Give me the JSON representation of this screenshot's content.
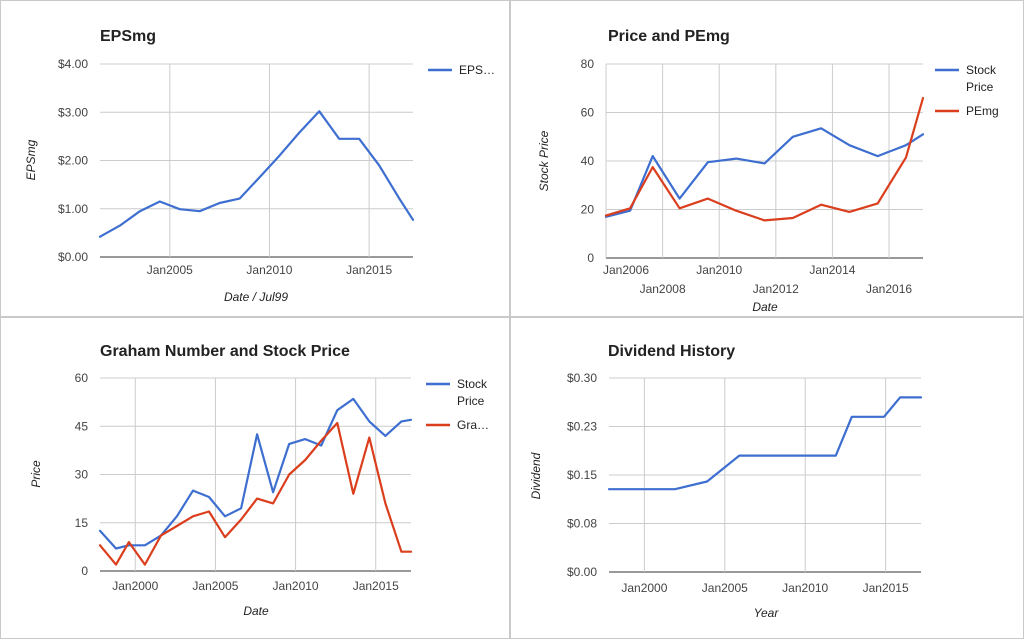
{
  "colors": {
    "blue": "#3e6fd0",
    "red": "#db3e1d",
    "grid": "#cccccc",
    "baseline": "#333333",
    "text": "#222222",
    "axis_text": "#444444"
  },
  "chart_data": [
    {
      "type": "line",
      "title": "EPSmg",
      "xlabel": "Date / Jul99",
      "ylabel": "EPSmg",
      "x_ticks": [
        "Jan2005",
        "Jan2010",
        "Jan2015"
      ],
      "y_ticks": [
        "$0.00",
        "$1.00",
        "$2.00",
        "$3.00",
        "$4.00"
      ],
      "ylim": [
        0,
        4
      ],
      "xlim": [
        2001.5,
        2017.2
      ],
      "grid": true,
      "legend_position": "right",
      "series": [
        {
          "name": "EPS…",
          "color": "#3e6fd0",
          "x": [
            2001.5,
            2002.5,
            2003.5,
            2004.5,
            2005.5,
            2006.5,
            2007.5,
            2008.5,
            2009.5,
            2010.5,
            2011.5,
            2012.5,
            2013.5,
            2014.5,
            2015.5,
            2016.5,
            2017.2
          ],
          "y": [
            0.42,
            0.65,
            0.95,
            1.15,
            0.99,
            0.95,
            1.12,
            1.21,
            1.65,
            2.1,
            2.58,
            3.02,
            2.45,
            2.45,
            1.9,
            1.22,
            0.77
          ]
        }
      ]
    },
    {
      "type": "line",
      "title": "Price and PEmg",
      "xlabel": "Date",
      "ylabel": "Stock Price",
      "x_ticks_upper": [
        "Jan2006",
        "Jan2010",
        "Jan2014"
      ],
      "x_ticks_lower": [
        "Jan2008",
        "Jan2012",
        "Jan2016"
      ],
      "y_ticks": [
        "0",
        "20",
        "40",
        "60",
        "80"
      ],
      "ylim": [
        0,
        80
      ],
      "xlim": [
        2006,
        2017.2
      ],
      "grid": true,
      "legend_position": "right",
      "series": [
        {
          "name": "Stock Price",
          "color": "#3e6fd0",
          "x": [
            2006,
            2006.85,
            2007.65,
            2008.6,
            2009.6,
            2010.6,
            2011.6,
            2012.6,
            2013.6,
            2014.6,
            2015.6,
            2016.6,
            2017.2
          ],
          "y": [
            17,
            19.5,
            42,
            24.5,
            39.5,
            41,
            39,
            50,
            53.5,
            46.5,
            42,
            46.5,
            51
          ]
        },
        {
          "name": "PEmg",
          "color": "#db3e1d",
          "x": [
            2006,
            2006.85,
            2007.65,
            2008.6,
            2009.6,
            2010.6,
            2011.6,
            2012.6,
            2013.6,
            2014.6,
            2015.6,
            2016.6,
            2017.2
          ],
          "y": [
            17.5,
            20.5,
            37.5,
            20.5,
            24.5,
            19.5,
            15.5,
            16.5,
            22,
            19,
            22.5,
            41.5,
            66
          ]
        }
      ]
    },
    {
      "type": "line",
      "title": "Graham Number and Stock Price",
      "xlabel": "Date",
      "ylabel": "Price",
      "x_ticks": [
        "Jan2000",
        "Jan2005",
        "Jan2010",
        "Jan2015"
      ],
      "y_ticks": [
        "0",
        "15",
        "30",
        "45",
        "60"
      ],
      "ylim": [
        0,
        60
      ],
      "xlim": [
        1997.8,
        2017.2
      ],
      "grid": true,
      "legend_position": "right",
      "series": [
        {
          "name": "Stock Price",
          "color": "#3e6fd0",
          "x": [
            1997.8,
            1998.8,
            1999.6,
            2000.6,
            2001.6,
            2002.6,
            2003.6,
            2004.6,
            2005.6,
            2006.6,
            2007.6,
            2008.6,
            2009.6,
            2010.6,
            2011.6,
            2012.6,
            2013.6,
            2014.6,
            2015.6,
            2016.6,
            2017.2
          ],
          "y": [
            12.5,
            7,
            8,
            8,
            11,
            17,
            25,
            23,
            17,
            19.5,
            42.5,
            24.5,
            39.5,
            41,
            39,
            50,
            53.5,
            46.5,
            42,
            46.5,
            47
          ]
        },
        {
          "name": "Gra…",
          "color": "#db3e1d",
          "x": [
            1997.8,
            1998.8,
            1999.6,
            2000.6,
            2001.6,
            2002.6,
            2003.6,
            2004.6,
            2005.6,
            2006.6,
            2007.6,
            2008.6,
            2009.6,
            2010.6,
            2011.6,
            2012.6,
            2013.6,
            2014.6,
            2015.6,
            2016.6,
            2017.2
          ],
          "y": [
            8,
            2,
            9,
            2,
            11,
            14,
            17,
            18.5,
            10.5,
            16,
            22.5,
            21,
            30,
            34.5,
            40.5,
            46,
            24,
            41.5,
            21,
            6,
            6
          ]
        }
      ]
    },
    {
      "type": "line",
      "title": "Dividend History",
      "xlabel": "Year",
      "ylabel": "Dividend",
      "x_ticks": [
        "Jan2000",
        "Jan2005",
        "Jan2010",
        "Jan2015"
      ],
      "y_ticks": [
        "$0.00",
        "$0.08",
        "$0.15",
        "$0.23",
        "$0.30"
      ],
      "ylim": [
        0,
        0.3
      ],
      "xlim": [
        1997.8,
        2017.2
      ],
      "grid": true,
      "series": [
        {
          "name": "Dividend",
          "color": "#3e6fd0",
          "x": [
            1997.8,
            2000,
            2001.9,
            2003.9,
            2005.9,
            2007.9,
            2009.9,
            2011.9,
            2012.9,
            2014.9,
            2015.9,
            2017.2
          ],
          "y": [
            0.128,
            0.128,
            0.128,
            0.14,
            0.18,
            0.18,
            0.18,
            0.18,
            0.24,
            0.24,
            0.27,
            0.27
          ]
        }
      ]
    }
  ]
}
